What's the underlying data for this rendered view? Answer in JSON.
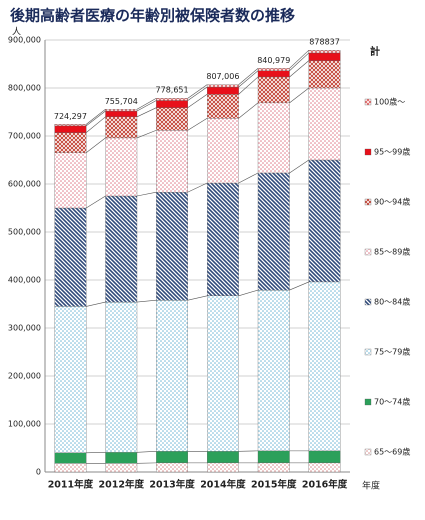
{
  "chart_data": {
    "type": "stacked-bar",
    "title": "後期高齢者医療の年齢別被保険者数の推移",
    "y_label": "人",
    "x_label": "年度",
    "legend_title": "計",
    "categories": [
      "2011年度",
      "2012年度",
      "2013年度",
      "2014年度",
      "2015年度",
      "2016年度"
    ],
    "series": [
      {
        "name": "65～69歳",
        "color": "#d98c8c",
        "pattern": "dots",
        "values": [
          18000,
          18000,
          19000,
          19000,
          19000,
          19000
        ]
      },
      {
        "name": "70～74歳",
        "color": "#2ca05a",
        "pattern": "solid",
        "values": [
          22000,
          23000,
          24000,
          24000,
          25000,
          25000
        ]
      },
      {
        "name": "75～79歳",
        "color": "#6fb7d6",
        "pattern": "dots",
        "values": [
          305000,
          313000,
          315000,
          324000,
          335000,
          352000
        ]
      },
      {
        "name": "80～84歳",
        "color": "#2f4a7a",
        "pattern": "diag",
        "values": [
          205000,
          221000,
          225000,
          235000,
          244000,
          254000
        ]
      },
      {
        "name": "85～89歳",
        "color": "#e07b8a",
        "pattern": "dots",
        "values": [
          115000,
          121000,
          129000,
          135000,
          146000,
          150000
        ]
      },
      {
        "name": "90～94歳",
        "color": "#c0392b",
        "pattern": "cross",
        "values": [
          42000,
          44000,
          47000,
          50000,
          54000,
          57000
        ]
      },
      {
        "name": "95～99歳",
        "color": "#e8101a",
        "pattern": "solid",
        "values": [
          14000,
          12000,
          15000,
          15000,
          13000,
          16000
        ]
      },
      {
        "name": "100歳～",
        "color": "#e06060",
        "pattern": "cross",
        "values": [
          3300,
          3700,
          4700,
          5000,
          5000,
          5800
        ]
      }
    ],
    "totals": {
      "values": [
        724297,
        755704,
        778651,
        807006,
        840979,
        878837
      ],
      "value_labels": [
        "724,297",
        "755,704",
        "778,651",
        "807,006",
        "840,979",
        "878837"
      ]
    },
    "ylim": [
      0,
      900000
    ],
    "yticks": [
      0,
      {
        "value": 100000,
        "label": "100,000"
      },
      {
        "value": 200000,
        "label": "200,000"
      },
      {
        "value": 300000,
        "label": "300,000"
      },
      {
        "value": 400000,
        "label": "400,000"
      },
      {
        "value": 500000,
        "label": "500,000"
      },
      {
        "value": 600000,
        "label": "600,000"
      },
      {
        "value": 700000,
        "label": "700,000"
      },
      {
        "value": 800000,
        "label": "800,000"
      },
      {
        "value": 900000,
        "label": "900,000"
      }
    ],
    "grid": true
  }
}
